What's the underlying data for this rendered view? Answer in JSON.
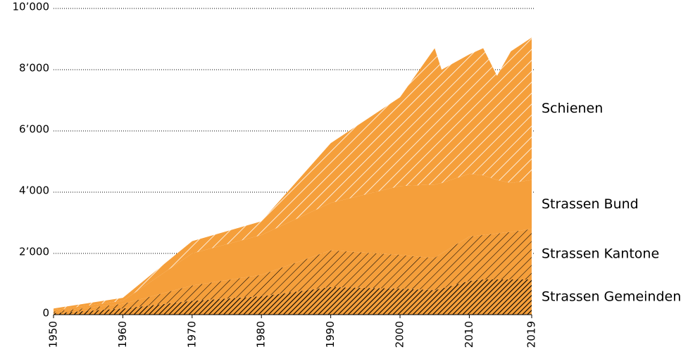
{
  "chart_data": {
    "type": "stacked-area",
    "x": [
      1950,
      1960,
      1970,
      1980,
      1990,
      2000,
      2005,
      2006,
      2010,
      2012,
      2014,
      2016,
      2019
    ],
    "series": [
      {
        "name": "Strassen Gemeinden",
        "color": "#f59f3b",
        "hatch": "#000000",
        "values": [
          50,
          200,
          450,
          600,
          900,
          850,
          800,
          850,
          1100,
          1150,
          1150,
          1150,
          1150
        ]
      },
      {
        "name": "Strassen Kantone",
        "color": "#f59f3b",
        "hatch": "#000000",
        "values": [
          50,
          150,
          500,
          700,
          1200,
          1100,
          1050,
          1150,
          1450,
          1450,
          1500,
          1550,
          1650
        ]
      },
      {
        "name": "Strassen Bund",
        "color": "#f59f3b",
        "hatch": null,
        "values": [
          50,
          100,
          1050,
          1300,
          1550,
          2250,
          2400,
          2300,
          2050,
          1950,
          1750,
          1600,
          1600
        ]
      },
      {
        "name": "Schienen",
        "color": "#f59f3b",
        "hatch": "#ffffff",
        "values": [
          50,
          100,
          400,
          450,
          1950,
          2900,
          4450,
          3700,
          3900,
          4150,
          3400,
          4300,
          4650
        ]
      }
    ],
    "xlim": [
      1950,
      2019
    ],
    "xticks": [
      1950,
      1960,
      1970,
      1980,
      1990,
      2000,
      2010,
      2019
    ],
    "ylim": [
      0,
      10000
    ],
    "yticks": [
      0,
      {
        "value": 2000,
        "label": "2’000"
      },
      {
        "value": 4000,
        "label": "4’000"
      },
      {
        "value": 6000,
        "label": "6’000"
      },
      {
        "value": 8000,
        "label": "8’000"
      },
      {
        "value": 10000,
        "label": "10’000"
      }
    ],
    "grid": true
  }
}
